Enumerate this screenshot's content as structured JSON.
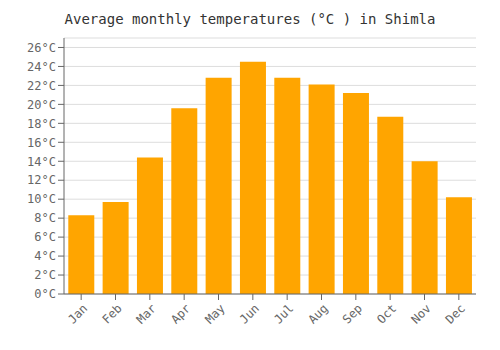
{
  "chart_data": {
    "type": "bar",
    "title": "Average monthly temperatures (°C ) in Shimla",
    "categories": [
      "Jan",
      "Feb",
      "Mar",
      "Apr",
      "May",
      "Jun",
      "Jul",
      "Aug",
      "Sep",
      "Oct",
      "Nov",
      "Dec"
    ],
    "values": [
      8.3,
      9.7,
      14.4,
      19.6,
      22.8,
      24.5,
      22.8,
      22.1,
      21.2,
      18.7,
      14.0,
      10.2
    ],
    "color": "#FFA500",
    "ylim": [
      0,
      27
    ],
    "yticks": [
      {
        "value": 0,
        "label": "0°C"
      },
      {
        "value": 2,
        "label": "2°C"
      },
      {
        "value": 4,
        "label": "4°C"
      },
      {
        "value": 6,
        "label": "6°C"
      },
      {
        "value": 8,
        "label": "8°C"
      },
      {
        "value": 10,
        "label": "10°C"
      },
      {
        "value": 12,
        "label": "12°C"
      },
      {
        "value": 14,
        "label": "14°C"
      },
      {
        "value": 16,
        "label": "16°C"
      },
      {
        "value": 18,
        "label": "18°C"
      },
      {
        "value": 20,
        "label": "20°C"
      },
      {
        "value": 22,
        "label": "22°C"
      },
      {
        "value": 24,
        "label": "24°C"
      },
      {
        "value": 26,
        "label": "26°C"
      }
    ],
    "grid": true
  }
}
